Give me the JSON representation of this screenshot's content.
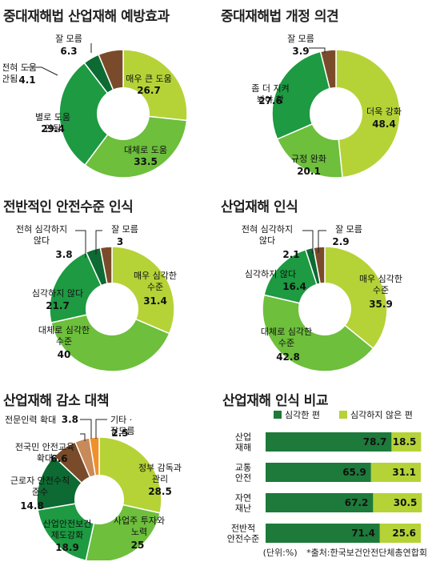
{
  "chart_data": [
    {
      "type": "pie",
      "title": "중대재해법 산업재해 예방효과",
      "slices": [
        {
          "label": "매우 큰 도움",
          "value": 26.7,
          "color": "#b5d337"
        },
        {
          "label": "대체로 도움",
          "value": 33.5,
          "color": "#6dbf3c"
        },
        {
          "label": "별로 도움 안됨",
          "value": 29.4,
          "color": "#1d9a42"
        },
        {
          "label": "전혀 도움 안됨",
          "value": 4.1,
          "color": "#0d6a32"
        },
        {
          "label": "잘 모름",
          "value": 6.3,
          "color": "#7a4b2a"
        }
      ]
    },
    {
      "type": "pie",
      "title": "중대재해법 개정 의견",
      "slices": [
        {
          "label": "더욱 강화",
          "value": 48.4,
          "color": "#b5d337"
        },
        {
          "label": "규정 완화",
          "value": 20.1,
          "color": "#6dbf3c"
        },
        {
          "label": "좀 더 지켜 봐야 함",
          "value": 27.6,
          "color": "#1d9a42"
        },
        {
          "label": "잘 모름",
          "value": 3.9,
          "color": "#7a4b2a"
        }
      ]
    },
    {
      "type": "pie",
      "title": "전반적인 안전수준 인식",
      "slices": [
        {
          "label": "매우 심각한 수준",
          "value": 31.4,
          "color": "#b5d337"
        },
        {
          "label": "대체로 심각한 수준",
          "value": 40.0,
          "color": "#6dbf3c"
        },
        {
          "label": "심각하지 않다",
          "value": 21.7,
          "color": "#1d9a42"
        },
        {
          "label": "전혀 심각하지 않다",
          "value": 3.8,
          "color": "#0d6a32"
        },
        {
          "label": "잘 모름",
          "value": 3.0,
          "color": "#7a4b2a"
        }
      ]
    },
    {
      "type": "pie",
      "title": "산업재해 인식",
      "slices": [
        {
          "label": "매우 심각한 수준",
          "value": 35.9,
          "color": "#b5d337"
        },
        {
          "label": "대체로 심각한 수준",
          "value": 42.8,
          "color": "#6dbf3c"
        },
        {
          "label": "심각하지 않다",
          "value": 16.4,
          "color": "#1d9a42"
        },
        {
          "label": "전혀 심각하지 않다",
          "value": 2.1,
          "color": "#0d6a32"
        },
        {
          "label": "잘 모름",
          "value": 2.9,
          "color": "#7a4b2a"
        }
      ]
    },
    {
      "type": "pie",
      "title": "산업재해 감소 대책",
      "slices": [
        {
          "label": "정부 감독과 관리",
          "value": 28.5,
          "color": "#b5d337"
        },
        {
          "label": "사업주 투자와 노력",
          "value": 25.0,
          "color": "#6dbf3c"
        },
        {
          "label": "산업안전보건 제도강화",
          "value": 18.9,
          "color": "#1d9a42"
        },
        {
          "label": "근로자 안전수칙 준수",
          "value": 14.8,
          "color": "#0d6a32"
        },
        {
          "label": "전국민 안전교육 확대",
          "value": 6.6,
          "color": "#7a4b2a"
        },
        {
          "label": "전문인력 확대",
          "value": 3.8,
          "color": "#c98a5a"
        },
        {
          "label": "기타 · 잘모름",
          "value": 2.5,
          "color": "#f0902a"
        }
      ]
    },
    {
      "type": "bar",
      "title": "산업재해 인식 비교",
      "orientation": "horizontal-stacked",
      "categories": [
        "산업\n재해",
        "교통\n안전",
        "자연\n재난",
        "전반적\n안전수준"
      ],
      "series": [
        {
          "name": "심각한 편",
          "values": [
            78.7,
            65.9,
            67.2,
            71.4
          ],
          "color": "#1d7a3a"
        },
        {
          "name": "심각하지 않은 편",
          "values": [
            18.5,
            31.1,
            30.5,
            25.6
          ],
          "color": "#b5d337"
        }
      ],
      "xlim": [
        0,
        100
      ],
      "legend": "top"
    }
  ],
  "footer": {
    "unit": "(단위:%)",
    "source": "*출처:한국보건안전단체총연합회"
  }
}
